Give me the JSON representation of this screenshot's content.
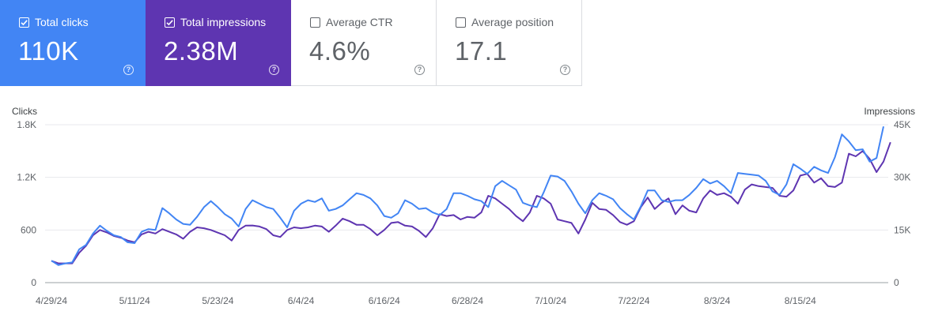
{
  "metrics": [
    {
      "label": "Total clicks",
      "value": "110K",
      "checked": true,
      "color": "#4285f4"
    },
    {
      "label": "Total impressions",
      "value": "2.38M",
      "checked": true,
      "color": "#5e35b1"
    },
    {
      "label": "Average CTR",
      "value": "4.6%",
      "checked": false,
      "color": "#ffffff"
    },
    {
      "label": "Average position",
      "value": "17.1",
      "checked": false,
      "color": "#ffffff"
    }
  ],
  "help_glyph": "?",
  "chart_data": {
    "type": "line",
    "left_axis_title": "Clicks",
    "right_axis_title": "Impressions",
    "left_ticks": [
      "0",
      "600",
      "1.2K",
      "1.8K"
    ],
    "left_tick_values": [
      0,
      600,
      1200,
      1800
    ],
    "right_ticks": [
      "0",
      "15K",
      "30K",
      "45K"
    ],
    "right_tick_values": [
      0,
      15000,
      30000,
      45000
    ],
    "ylim_left": [
      0,
      1800
    ],
    "ylim_right": [
      0,
      45000
    ],
    "x_labels": [
      "4/29/24",
      "5/11/24",
      "5/23/24",
      "6/4/24",
      "6/16/24",
      "6/28/24",
      "7/10/24",
      "7/22/24",
      "8/3/24",
      "8/15/24"
    ],
    "x_label_day_index": [
      0,
      12,
      24,
      36,
      48,
      60,
      72,
      84,
      96,
      108
    ],
    "grid": true,
    "series": [
      {
        "name": "Clicks",
        "axis": "left",
        "color": "#4285f4",
        "values": [
          250,
          200,
          220,
          230,
          380,
          430,
          560,
          650,
          590,
          540,
          520,
          460,
          450,
          580,
          610,
          600,
          850,
          790,
          720,
          670,
          660,
          750,
          860,
          930,
          860,
          780,
          730,
          640,
          840,
          940,
          900,
          860,
          840,
          740,
          630,
          820,
          900,
          940,
          920,
          960,
          820,
          840,
          880,
          950,
          1020,
          1000,
          960,
          880,
          760,
          740,
          790,
          940,
          900,
          840,
          850,
          800,
          770,
          840,
          1020,
          1020,
          990,
          950,
          930,
          860,
          1100,
          1160,
          1110,
          1060,
          910,
          880,
          860,
          1030,
          1220,
          1210,
          1160,
          1040,
          900,
          790,
          940,
          1020,
          990,
          950,
          850,
          780,
          720,
          870,
          1050,
          1050,
          940,
          920,
          940,
          940,
          1000,
          1080,
          1180,
          1130,
          1160,
          1100,
          1020,
          1250,
          1240,
          1230,
          1220,
          1160,
          1040,
          1000,
          1120,
          1350,
          1300,
          1240,
          1320,
          1280,
          1250,
          1430,
          1690,
          1610,
          1510,
          1520,
          1380,
          1420,
          1780
        ]
      },
      {
        "name": "Impressions",
        "axis": "right",
        "color": "#5e35b1",
        "values": [
          6200,
          5500,
          5500,
          5500,
          8500,
          10500,
          13500,
          15000,
          14300,
          13300,
          12800,
          12000,
          11500,
          13750,
          14500,
          14000,
          15250,
          14500,
          13750,
          12500,
          14500,
          15750,
          15500,
          15000,
          14250,
          13500,
          12000,
          15000,
          16250,
          16300,
          16000,
          15250,
          13500,
          13000,
          15000,
          15750,
          15500,
          15750,
          16250,
          16000,
          14500,
          16250,
          18250,
          17500,
          16500,
          16500,
          15250,
          13500,
          15000,
          17000,
          17250,
          16250,
          16000,
          14750,
          13000,
          15500,
          19500,
          19000,
          19250,
          18000,
          18750,
          18500,
          20000,
          24750,
          24000,
          22500,
          21000,
          19000,
          17500,
          20000,
          24750,
          24000,
          22500,
          18000,
          17500,
          17000,
          14000,
          18000,
          22750,
          21000,
          20750,
          19250,
          17250,
          16500,
          17500,
          21500,
          24250,
          21000,
          22750,
          24000,
          19500,
          22000,
          20500,
          20000,
          24000,
          26250,
          25000,
          25500,
          24500,
          22500,
          26500,
          28000,
          27500,
          27250,
          27000,
          24750,
          24500,
          26250,
          30500,
          31000,
          28500,
          29750,
          27500,
          27250,
          28500,
          36750,
          36000,
          37500,
          35250,
          31500,
          34500,
          40000
        ]
      }
    ]
  }
}
